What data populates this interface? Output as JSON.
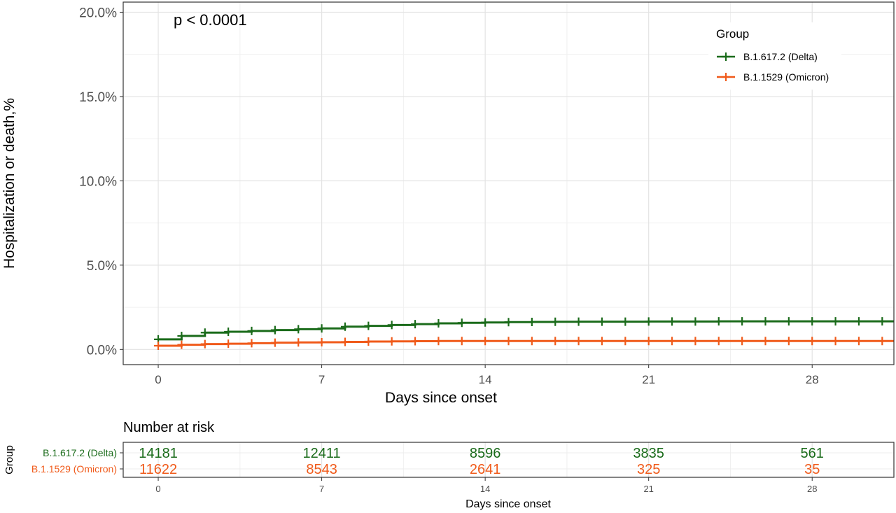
{
  "chart_data": [
    {
      "type": "line",
      "subtype": "kaplan-meier-cumulative-incidence",
      "annotation": "p < 0.0001",
      "xlabel": "Days since onset",
      "ylabel": "Hospitalization or death,%",
      "xlim": [
        -1.5,
        31.5
      ],
      "ylim": [
        -0.9,
        20.6
      ],
      "x_ticks": [
        0,
        7,
        14,
        21,
        28
      ],
      "y_ticks": [
        0,
        5,
        10,
        15,
        20
      ],
      "y_tick_labels": [
        "0.0%",
        "5.0%",
        "10.0%",
        "15.0%",
        "20.0%"
      ],
      "grid": true,
      "legend": {
        "title": "Group",
        "position": "top-right"
      },
      "series": [
        {
          "name": "B.1.617.2 (Delta)",
          "color": "#1a6b1a",
          "marker": "plus-censor",
          "points": [
            [
              0,
              0.6
            ],
            [
              1,
              0.8
            ],
            [
              2,
              1.0
            ],
            [
              3,
              1.05
            ],
            [
              4,
              1.1
            ],
            [
              5,
              1.15
            ],
            [
              6,
              1.2
            ],
            [
              7,
              1.25
            ],
            [
              8,
              1.35
            ],
            [
              9,
              1.4
            ],
            [
              10,
              1.45
            ],
            [
              11,
              1.5
            ],
            [
              12,
              1.55
            ],
            [
              13,
              1.58
            ],
            [
              14,
              1.6
            ],
            [
              15,
              1.62
            ],
            [
              16,
              1.63
            ],
            [
              17,
              1.64
            ],
            [
              18,
              1.65
            ],
            [
              19,
              1.65
            ],
            [
              20,
              1.65
            ],
            [
              21,
              1.66
            ],
            [
              22,
              1.66
            ],
            [
              23,
              1.66
            ],
            [
              24,
              1.67
            ],
            [
              25,
              1.67
            ],
            [
              26,
              1.67
            ],
            [
              27,
              1.67
            ],
            [
              28,
              1.67
            ],
            [
              29,
              1.67
            ],
            [
              30,
              1.67
            ],
            [
              31,
              1.67
            ]
          ]
        },
        {
          "name": "B.1.1529 (Omicron)",
          "color": "#f05a1a",
          "marker": "plus-censor",
          "points": [
            [
              0,
              0.22
            ],
            [
              1,
              0.28
            ],
            [
              2,
              0.32
            ],
            [
              3,
              0.34
            ],
            [
              4,
              0.37
            ],
            [
              5,
              0.4
            ],
            [
              6,
              0.42
            ],
            [
              7,
              0.43
            ],
            [
              8,
              0.45
            ],
            [
              9,
              0.47
            ],
            [
              10,
              0.48
            ],
            [
              11,
              0.49
            ],
            [
              12,
              0.5
            ],
            [
              13,
              0.5
            ],
            [
              14,
              0.5
            ],
            [
              15,
              0.5
            ],
            [
              16,
              0.5
            ],
            [
              17,
              0.5
            ],
            [
              18,
              0.5
            ],
            [
              19,
              0.5
            ],
            [
              20,
              0.5
            ],
            [
              21,
              0.5
            ],
            [
              22,
              0.5
            ],
            [
              23,
              0.5
            ],
            [
              24,
              0.5
            ],
            [
              25,
              0.5
            ],
            [
              26,
              0.5
            ],
            [
              27,
              0.5
            ],
            [
              28,
              0.5
            ],
            [
              29,
              0.5
            ],
            [
              30,
              0.5
            ],
            [
              31,
              0.5
            ]
          ]
        }
      ]
    },
    {
      "type": "table",
      "title": "Number at risk",
      "ylabel": "Group",
      "xlabel": "Days since onset",
      "x_ticks": [
        0,
        7,
        14,
        21,
        28
      ],
      "rows": [
        {
          "name": "B.1.617.2 (Delta)",
          "color": "#1a6b1a",
          "values": [
            "14181",
            "12411",
            "8596",
            "3835",
            "561"
          ]
        },
        {
          "name": "B.1.1529 (Omicron)",
          "color": "#f05a1a",
          "values": [
            "11622",
            "8543",
            "2641",
            "325",
            "35"
          ]
        }
      ]
    }
  ]
}
